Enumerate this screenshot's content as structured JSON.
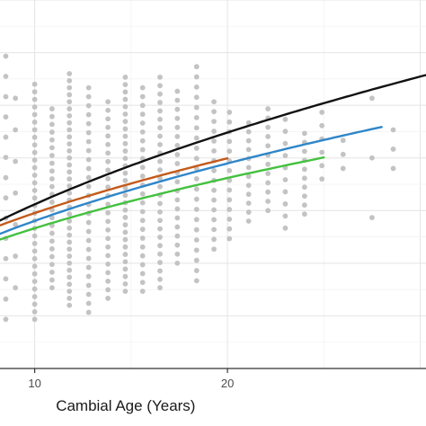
{
  "chart_data": {
    "type": "scatter",
    "xlabel": "Cambial Age (Years)",
    "ylabel": "",
    "xlim": [
      8.2,
      30.3
    ],
    "ylim": [
      0,
      10.5
    ],
    "x_ticks": [
      10,
      20
    ],
    "x_tick_labels": [
      "10",
      "20"
    ],
    "grid": true,
    "legend": "none",
    "colors": {
      "points": "#c3c3c3",
      "major_grid": "#e4e4e4",
      "minor_grid": "#f2f2f2",
      "axis": "#333333"
    },
    "points": [
      {
        "x": 8.5,
        "ylow": 1.4,
        "yhigh": 8.9,
        "n": 14
      },
      {
        "x": 9.0,
        "ylow": 2.3,
        "yhigh": 7.7,
        "n": 7
      },
      {
        "x": 10.0,
        "ylow": 1.4,
        "yhigh": 8.1,
        "n": 32
      },
      {
        "x": 10.9,
        "ylow": 2.3,
        "yhigh": 7.4,
        "n": 24
      },
      {
        "x": 11.8,
        "ylow": 1.8,
        "yhigh": 8.4,
        "n": 34
      },
      {
        "x": 12.8,
        "ylow": 1.6,
        "yhigh": 8.0,
        "n": 26
      },
      {
        "x": 13.8,
        "ylow": 2.0,
        "yhigh": 7.6,
        "n": 24
      },
      {
        "x": 14.7,
        "ylow": 2.2,
        "yhigh": 8.3,
        "n": 30
      },
      {
        "x": 15.6,
        "ylow": 2.2,
        "yhigh": 8.0,
        "n": 24
      },
      {
        "x": 16.5,
        "ylow": 2.3,
        "yhigh": 8.3,
        "n": 26
      },
      {
        "x": 17.4,
        "ylow": 3.0,
        "yhigh": 7.9,
        "n": 20
      },
      {
        "x": 18.4,
        "ylow": 2.5,
        "yhigh": 8.6,
        "n": 22
      },
      {
        "x": 19.3,
        "ylow": 3.4,
        "yhigh": 7.6,
        "n": 16
      },
      {
        "x": 20.1,
        "ylow": 3.7,
        "yhigh": 7.3,
        "n": 14
      },
      {
        "x": 21.1,
        "ylow": 4.2,
        "yhigh": 7.0,
        "n": 12
      },
      {
        "x": 22.1,
        "ylow": 4.5,
        "yhigh": 7.4,
        "n": 12
      },
      {
        "x": 23.0,
        "ylow": 4.0,
        "yhigh": 7.1,
        "n": 10
      },
      {
        "x": 24.0,
        "ylow": 4.4,
        "yhigh": 6.7,
        "n": 10
      },
      {
        "x": 24.9,
        "ylow": 5.4,
        "yhigh": 7.3,
        "n": 6
      },
      {
        "x": 26.0,
        "ylow": 5.7,
        "yhigh": 6.5,
        "n": 3
      },
      {
        "x": 27.5,
        "ylow": 4.3,
        "yhigh": 7.7,
        "n": 3
      },
      {
        "x": 28.6,
        "ylow": 5.7,
        "yhigh": 6.8,
        "n": 3
      }
    ],
    "series": [
      {
        "color": "#c45a1a",
        "x_end": 20,
        "a": 0.915,
        "b": 0.305,
        "c": 0.53
      },
      {
        "color": "#43c13e",
        "x_end": 25,
        "a": 0.77,
        "b": 0.28,
        "c": 0.53
      },
      {
        "color": "#2f86c9",
        "x_end": 28,
        "a": 0.52,
        "b": 0.32,
        "c": 0.53
      },
      {
        "color": "#111111",
        "x_end": 30.3,
        "a": 0.07,
        "b": 0.4,
        "c": 0.53
      }
    ]
  }
}
